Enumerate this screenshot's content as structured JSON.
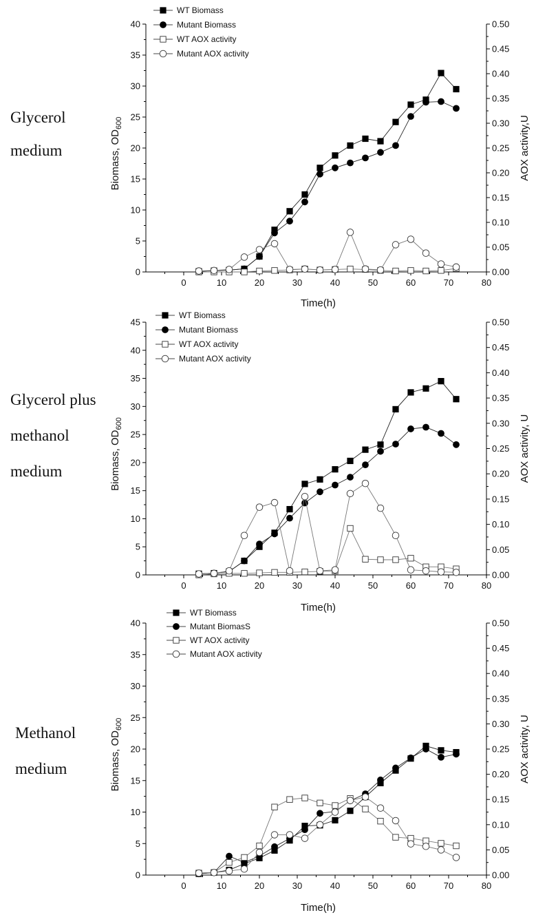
{
  "chart_data": [
    {
      "type": "line",
      "panel_label": [
        "Glycerol",
        "medium"
      ],
      "xlabel": "Time(h)",
      "ylabel": "Biomass, OD",
      "ylabel_sub": "600",
      "y2label": "AOX activity,U",
      "xlim": [
        -10,
        80
      ],
      "ylim": [
        0,
        40
      ],
      "y2lim": [
        0,
        0.5
      ],
      "x_ticks": [
        "0",
        "10",
        "20",
        "30",
        "40",
        "50",
        "60",
        "70",
        "80"
      ],
      "y_ticks": [
        "0",
        "5",
        "10",
        "15",
        "20",
        "25",
        "30",
        "35",
        "40"
      ],
      "y2_ticks": [
        "0.00",
        "0.05",
        "0.10",
        "0.15",
        "0.20",
        "0.25",
        "0.30",
        "0.35",
        "0.40",
        "0.45",
        "0.50"
      ],
      "legend": [
        "WT Biomass",
        "Mutant Biomass",
        "WT AOX activity",
        "Mutant  AOX activity"
      ],
      "series": [
        {
          "name": "WT Biomass",
          "marker": "square-filled",
          "axis": "left",
          "x": [
            4,
            8,
            12,
            16,
            20,
            24,
            28,
            32,
            36,
            40,
            44,
            48,
            52,
            56,
            60,
            64,
            68,
            72
          ],
          "y": [
            0.1,
            0.2,
            0.3,
            0.5,
            2.5,
            6.8,
            9.8,
            12.5,
            16.8,
            18.8,
            20.4,
            21.5,
            21.1,
            24.2,
            27.0,
            27.8,
            32.1,
            29.5
          ]
        },
        {
          "name": "Mutant Biomass",
          "marker": "circle-filled",
          "axis": "left",
          "x": [
            4,
            8,
            12,
            16,
            20,
            24,
            28,
            32,
            36,
            40,
            44,
            48,
            52,
            56,
            60,
            64,
            68,
            72
          ],
          "y": [
            0.1,
            0.2,
            0.3,
            0.5,
            2.5,
            6.3,
            8.2,
            11.3,
            15.8,
            16.8,
            17.6,
            18.4,
            19.3,
            20.4,
            25.1,
            27.4,
            27.5,
            26.4
          ]
        },
        {
          "name": "WT AOX activity",
          "marker": "square-open",
          "axis": "right",
          "x": [
            4,
            8,
            12,
            16,
            20,
            24,
            28,
            32,
            36,
            40,
            44,
            48,
            52,
            56,
            60,
            64,
            68,
            72
          ],
          "y": [
            0.0,
            0.0,
            0.0,
            0.0,
            0.002,
            0.003,
            0.004,
            0.006,
            0.004,
            0.005,
            0.006,
            0.005,
            0.003,
            0.002,
            0.003,
            0.002,
            0.003,
            0.007
          ]
        },
        {
          "name": "Mutant  AOX activity",
          "marker": "circle-open",
          "axis": "right",
          "x": [
            4,
            8,
            12,
            16,
            20,
            24,
            28,
            32,
            36,
            40,
            44,
            48,
            52,
            56,
            60,
            64,
            68,
            72
          ],
          "y": [
            0.002,
            0.003,
            0.005,
            0.03,
            0.045,
            0.057,
            0.005,
            0.006,
            0.004,
            0.005,
            0.08,
            0.006,
            0.004,
            0.055,
            0.066,
            0.038,
            0.016,
            0.01
          ]
        }
      ]
    },
    {
      "type": "line",
      "panel_label": [
        "Glycerol plus",
        "methanol",
        "medium"
      ],
      "xlabel": "Time(h)",
      "ylabel": "Biomass, OD",
      "ylabel_sub": "600",
      "y2label": "AOX activity, U",
      "xlim": [
        -10,
        80
      ],
      "ylim": [
        0,
        45
      ],
      "y2lim": [
        0,
        0.5
      ],
      "x_ticks": [
        "0",
        "10",
        "20",
        "30",
        "40",
        "50",
        "60",
        "70",
        "80"
      ],
      "y_ticks": [
        "0",
        "5",
        "10",
        "15",
        "20",
        "25",
        "30",
        "35",
        "40",
        "45"
      ],
      "y2_ticks": [
        "0.00",
        "0.05",
        "0.10",
        "0.15",
        "0.20",
        "0.25",
        "0.30",
        "0.35",
        "0.40",
        "0.45",
        "0.50"
      ],
      "legend": [
        "WT Biomass",
        "Mutant Biomass",
        "WT AOX activity",
        "Mutant AOX activity"
      ],
      "series": [
        {
          "name": "WT Biomass",
          "marker": "square-filled",
          "axis": "left",
          "x": [
            4,
            8,
            12,
            16,
            20,
            24,
            28,
            32,
            36,
            40,
            44,
            48,
            52,
            56,
            60,
            64,
            68,
            72
          ],
          "y": [
            0.2,
            0.3,
            0.6,
            2.5,
            5.0,
            7.5,
            11.7,
            16.2,
            17.0,
            18.8,
            20.3,
            22.3,
            23.2,
            29.5,
            32.5,
            33.2,
            34.5,
            31.3
          ]
        },
        {
          "name": "Mutant Biomass",
          "marker": "circle-filled",
          "axis": "left",
          "x": [
            4,
            8,
            12,
            16,
            20,
            24,
            28,
            32,
            36,
            40,
            44,
            48,
            52,
            56,
            60,
            64,
            68,
            72
          ],
          "y": [
            0.2,
            0.3,
            0.6,
            2.5,
            5.5,
            7.3,
            10.1,
            12.8,
            14.8,
            16.0,
            17.4,
            19.6,
            22.0,
            23.3,
            26.0,
            26.3,
            25.2,
            23.2
          ]
        },
        {
          "name": "WT AOX activity",
          "marker": "square-open",
          "axis": "right",
          "x": [
            4,
            8,
            12,
            16,
            20,
            24,
            28,
            32,
            36,
            40,
            44,
            48,
            52,
            56,
            60,
            64,
            68,
            72
          ],
          "y": [
            0.0,
            0.002,
            0.003,
            0.003,
            0.004,
            0.005,
            0.005,
            0.006,
            0.007,
            0.008,
            0.092,
            0.031,
            0.03,
            0.03,
            0.033,
            0.016,
            0.016,
            0.012
          ]
        },
        {
          "name": "Mutant AOX activity",
          "marker": "circle-open",
          "axis": "right",
          "x": [
            4,
            8,
            12,
            16,
            20,
            24,
            28,
            32,
            36,
            40,
            44,
            48,
            52,
            56,
            60,
            64,
            68,
            72
          ],
          "y": [
            0.002,
            0.003,
            0.008,
            0.078,
            0.134,
            0.143,
            0.008,
            0.155,
            0.008,
            0.01,
            0.161,
            0.181,
            0.132,
            0.078,
            0.01,
            0.008,
            0.006,
            0.005
          ]
        }
      ]
    },
    {
      "type": "line",
      "panel_label": [
        "Methanol",
        "medium"
      ],
      "xlabel": "Time(h)",
      "ylabel": "Biomass, OD",
      "ylabel_sub": "600",
      "y2label": "AOX activity, U",
      "xlim": [
        -10,
        80
      ],
      "ylim": [
        0,
        40
      ],
      "y2lim": [
        0,
        0.5
      ],
      "x_ticks": [
        "0",
        "10",
        "20",
        "30",
        "40",
        "50",
        "60",
        "70",
        "80"
      ],
      "y_ticks": [
        "0",
        "5",
        "10",
        "15",
        "20",
        "25",
        "30",
        "35",
        "40"
      ],
      "y2_ticks": [
        "0.00",
        "0.05",
        "0.10",
        "0.15",
        "0.20",
        "0.25",
        "0.30",
        "0.35",
        "0.40",
        "0.45",
        "0.50"
      ],
      "legend": [
        "WT Biomass",
        "Mutant BiomasS",
        "WT AOX activity",
        "Mutant AOX activity"
      ],
      "series": [
        {
          "name": "WT Biomass",
          "marker": "square-filled",
          "axis": "left",
          "x": [
            4,
            8,
            12,
            16,
            20,
            24,
            28,
            32,
            36,
            40,
            44,
            48,
            52,
            56,
            60,
            64,
            68,
            72
          ],
          "y": [
            0.2,
            0.4,
            0.8,
            1.8,
            2.7,
            3.9,
            5.5,
            7.8,
            7.9,
            8.7,
            10.2,
            12.4,
            14.6,
            16.6,
            18.5,
            20.5,
            19.8,
            19.5
          ]
        },
        {
          "name": "Mutant BiomasS",
          "marker": "circle-filled",
          "axis": "left",
          "x": [
            4,
            8,
            12,
            16,
            20,
            24,
            28,
            32,
            36,
            40,
            44,
            48,
            52,
            56,
            60,
            64,
            68,
            72
          ],
          "y": [
            0.2,
            0.4,
            3.0,
            2.0,
            3.0,
            4.5,
            5.8,
            7.2,
            9.8,
            10.1,
            11.8,
            12.9,
            15.1,
            17.0,
            18.6,
            20.0,
            18.7,
            19.2
          ]
        },
        {
          "name": "WT AOX activity",
          "marker": "square-open",
          "axis": "right",
          "x": [
            4,
            8,
            12,
            16,
            20,
            24,
            28,
            32,
            36,
            40,
            44,
            48,
            52,
            56,
            60,
            64,
            68,
            72
          ],
          "y": [
            0.004,
            0.005,
            0.025,
            0.035,
            0.058,
            0.135,
            0.15,
            0.153,
            0.143,
            0.138,
            0.152,
            0.131,
            0.107,
            0.075,
            0.073,
            0.068,
            0.063,
            0.058
          ]
        },
        {
          "name": "Mutant AOX activity",
          "marker": "circle-open",
          "axis": "right",
          "x": [
            4,
            8,
            12,
            16,
            20,
            24,
            28,
            32,
            36,
            40,
            44,
            48,
            52,
            56,
            60,
            64,
            68,
            72
          ],
          "y": [
            0.004,
            0.005,
            0.008,
            0.012,
            0.045,
            0.08,
            0.08,
            0.073,
            0.1,
            0.125,
            0.148,
            0.155,
            0.133,
            0.108,
            0.062,
            0.057,
            0.05,
            0.035
          ]
        }
      ]
    }
  ]
}
